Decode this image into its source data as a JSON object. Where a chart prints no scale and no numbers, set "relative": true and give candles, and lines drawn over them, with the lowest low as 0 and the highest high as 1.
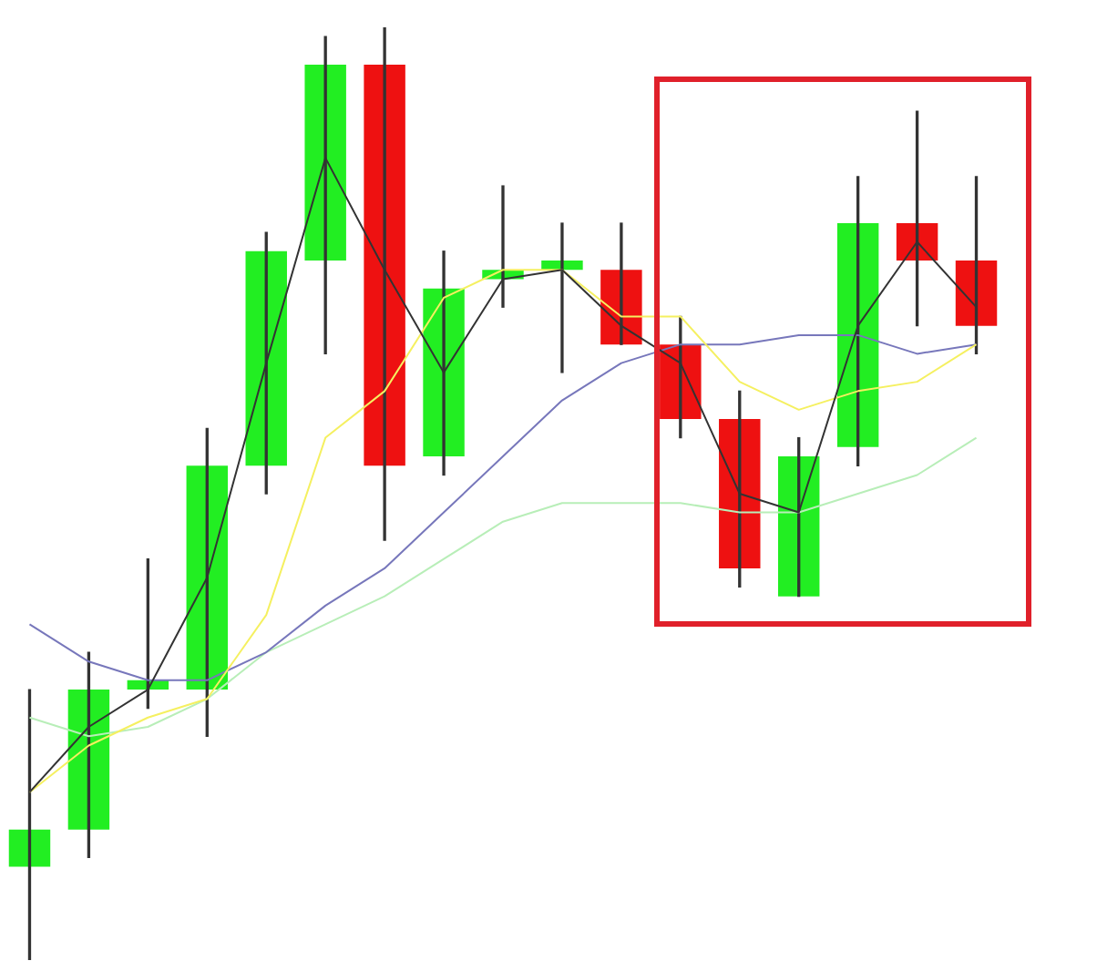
{
  "chart_data": {
    "type": "candlestick",
    "relative": true,
    "categories": [
      null,
      null,
      null,
      null,
      null,
      null,
      null,
      null,
      null,
      null,
      null,
      null,
      null,
      null,
      null,
      null,
      null
    ],
    "ohlc": [
      [
        0.1,
        0.29,
        0,
        0.14
      ],
      [
        0.14,
        0.33,
        0.11,
        0.29
      ],
      [
        0.29,
        0.43,
        0.27,
        0.3
      ],
      [
        0.29,
        0.57,
        0.24,
        0.53
      ],
      [
        0.53,
        0.78,
        0.5,
        0.76
      ],
      [
        0.75,
        0.99,
        0.65,
        0.96
      ],
      [
        0.96,
        1,
        0.45,
        0.53
      ],
      [
        0.54,
        0.76,
        0.52,
        0.72
      ],
      [
        0.73,
        0.83,
        0.7,
        0.74
      ],
      [
        0.74,
        0.79,
        0.63,
        0.75
      ],
      [
        0.74,
        0.79,
        0.66,
        0.66
      ],
      [
        0.66,
        0.69,
        0.56,
        0.58
      ],
      [
        0.58,
        0.61,
        0.4,
        0.42
      ],
      [
        0.39,
        0.56,
        0.39,
        0.54
      ],
      [
        0.55,
        0.84,
        0.53,
        0.79
      ],
      [
        0.79,
        0.91,
        0.68,
        0.75
      ],
      [
        0.75,
        0.84,
        0.65,
        0.68
      ]
    ],
    "colors": [
      "#22ee22",
      "#22ee22",
      "#22ee22",
      "#22ee22",
      "#22ee22",
      "#22ee22",
      "#ee1111",
      "#22ee22",
      "#22ee22",
      "#22ee22",
      "#ee1111",
      "#ee1111",
      "#ee1111",
      "#22ee22",
      "#22ee22",
      "#ee1111",
      "#ee1111"
    ],
    "series": [
      {
        "type": "line",
        "color": "#333333",
        "values": [
          0.18,
          0.25,
          0.29,
          0.41,
          0.64,
          0.86,
          0.74,
          0.63,
          0.73,
          0.74,
          0.68,
          0.64,
          0.5,
          0.48,
          0.68,
          0.77,
          0.7
        ]
      },
      {
        "type": "line",
        "color": "#f5f060",
        "values": [
          0.18,
          0.23,
          0.26,
          0.28,
          0.37,
          0.56,
          0.61,
          0.71,
          0.74,
          0.74,
          0.69,
          0.69,
          0.62,
          0.59,
          0.61,
          0.62,
          0.66
        ]
      },
      {
        "type": "line",
        "color": "#7777bb",
        "values": [
          0.36,
          0.32,
          0.3,
          0.3,
          0.33,
          0.38,
          0.42,
          0.48,
          0.54,
          0.6,
          0.64,
          0.66,
          0.66,
          0.67,
          0.67,
          0.65,
          0.66
        ]
      },
      {
        "type": "line",
        "color": "#b8eeb8",
        "values": [
          0.26,
          0.24,
          0.25,
          0.28,
          0.33,
          0.36,
          0.39,
          0.43,
          0.47,
          0.49,
          0.49,
          0.49,
          0.48,
          0.48,
          0.5,
          0.52,
          0.56
        ]
      }
    ]
  }
}
